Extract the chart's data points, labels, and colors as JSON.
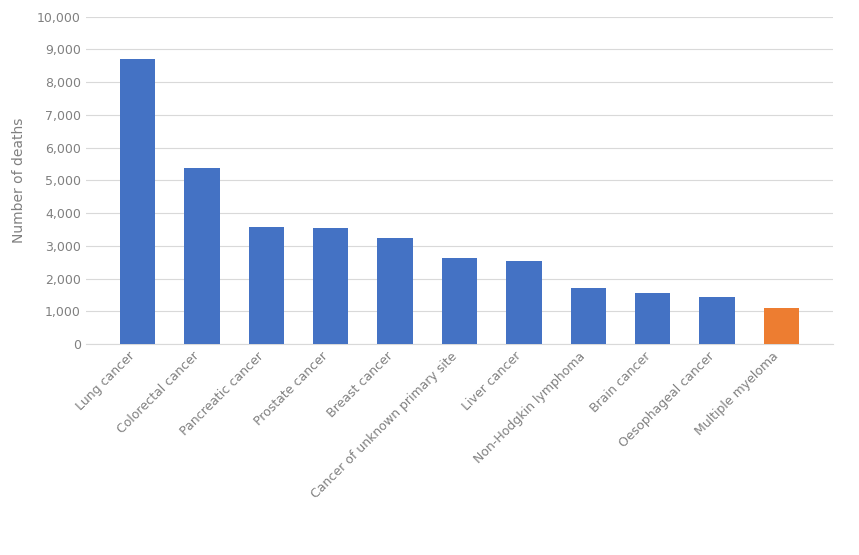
{
  "categories": [
    "Lung cancer",
    "Colorectal cancer",
    "Pancreatic cancer",
    "Prostate cancer",
    "Breast cancer",
    "Cancer of unknown primary site",
    "Liver cancer",
    "Non-Hodgkin lymphoma",
    "Brain cancer",
    "Oesophageal cancer",
    "Multiple myeloma"
  ],
  "values": [
    8700,
    5375,
    3575,
    3550,
    3250,
    2625,
    2525,
    1700,
    1550,
    1425,
    1100
  ],
  "bar_colors": [
    "#4472C4",
    "#4472C4",
    "#4472C4",
    "#4472C4",
    "#4472C4",
    "#4472C4",
    "#4472C4",
    "#4472C4",
    "#4472C4",
    "#4472C4",
    "#ED7D31"
  ],
  "ylabel": "Number of deaths",
  "ylim": [
    0,
    10000
  ],
  "yticks": [
    0,
    1000,
    2000,
    3000,
    4000,
    5000,
    6000,
    7000,
    8000,
    9000,
    10000
  ],
  "ytick_labels": [
    "0",
    "1,000",
    "2,000",
    "3,000",
    "4,000",
    "5,000",
    "6,000",
    "7,000",
    "8,000",
    "9,000",
    "10,000"
  ],
  "background_color": "#ffffff",
  "grid_color": "#d9d9d9",
  "bar_width": 0.55,
  "label_fontsize": 9,
  "ylabel_fontsize": 10,
  "tick_fontsize": 9,
  "label_color": "#808080"
}
